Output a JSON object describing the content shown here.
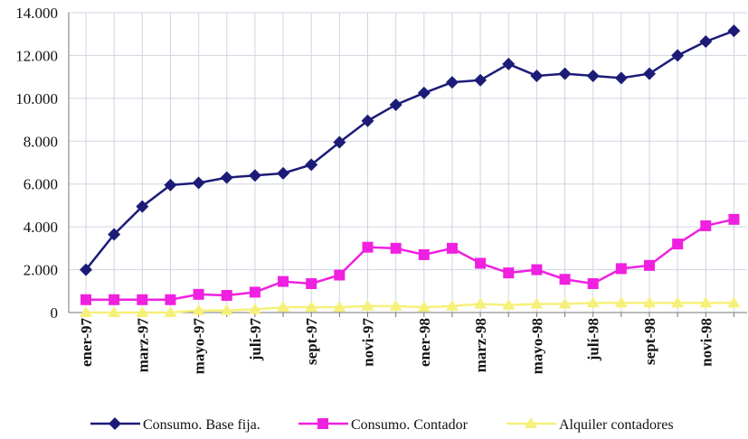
{
  "chart_data": {
    "type": "line",
    "categories": [
      "ener-97",
      null,
      "marz-97",
      null,
      "mayo-97",
      null,
      "julí-97",
      null,
      "sept-97",
      null,
      "novi-97",
      null,
      "ener-98",
      null,
      "marz-98",
      null,
      "mayo-98",
      null,
      "julí-98",
      null,
      "sept-98",
      null,
      "novi-98",
      null
    ],
    "series": [
      {
        "name": "Consumo. Base fija.",
        "color": "#1c1c78",
        "marker": "diamond",
        "values": [
          2000,
          3650,
          4950,
          5950,
          6050,
          6300,
          6400,
          6500,
          6900,
          7950,
          8950,
          9700,
          10250,
          10750,
          10850,
          11600,
          11050,
          11150,
          11050,
          10950,
          11150,
          12000,
          12650,
          13150
        ]
      },
      {
        "name": "Consumo. Contador",
        "color": "#f020e0",
        "marker": "square",
        "values": [
          600,
          600,
          600,
          600,
          850,
          800,
          950,
          1450,
          1350,
          1750,
          3050,
          3000,
          2700,
          3000,
          2300,
          1850,
          2000,
          1550,
          1350,
          2050,
          2200,
          3200,
          4050,
          4350
        ]
      },
      {
        "name": "Alquiler contadores",
        "color": "#f6f07a",
        "marker": "triangle",
        "values": [
          0,
          0,
          0,
          0,
          100,
          100,
          150,
          250,
          250,
          250,
          300,
          300,
          250,
          300,
          400,
          350,
          400,
          400,
          450,
          450,
          450,
          450,
          450,
          450
        ]
      }
    ],
    "ylim": [
      0,
      14000
    ],
    "yticks": [
      0,
      {
        "value": 2000,
        "label": "2.000"
      },
      {
        "value": 4000,
        "label": "4.000"
      },
      {
        "value": 6000,
        "label": "6.000"
      },
      {
        "value": 8000,
        "label": "8.000"
      },
      {
        "value": 10000,
        "label": "10.000"
      },
      {
        "value": 12000,
        "label": "12.000"
      },
      {
        "value": 14000,
        "label": "14.000"
      }
    ],
    "grid": true,
    "legend": "bottom"
  }
}
